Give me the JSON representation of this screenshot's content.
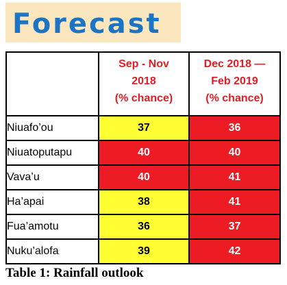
{
  "title": "Forecast",
  "table": {
    "header_a": [
      "Sep - Nov",
      "2018",
      "(% chance)"
    ],
    "header_b": [
      "Dec 2018 —",
      "Feb 2019",
      "(% chance)"
    ],
    "rows": [
      {
        "name": "Niuafo’ou",
        "a": "37",
        "b": "36"
      },
      {
        "name": "Niuatoputapu",
        "a": "40",
        "b": "40"
      },
      {
        "name": "Vava’u",
        "a": "40",
        "b": "41"
      },
      {
        "name": "Ha’apai",
        "a": "38",
        "b": "41"
      },
      {
        "name": "Fua’amotu",
        "a": "36",
        "b": "37"
      },
      {
        "name": "Nuku’alofa",
        "a": "39",
        "b": "42"
      }
    ]
  },
  "caption": "Table 1: Rainfall outlook",
  "colors": {
    "title": "#1b74c4",
    "title_band": "#fbe6be",
    "header_text": "#e81c25",
    "yellow": "#ffff33",
    "red": "#ed1c24"
  }
}
